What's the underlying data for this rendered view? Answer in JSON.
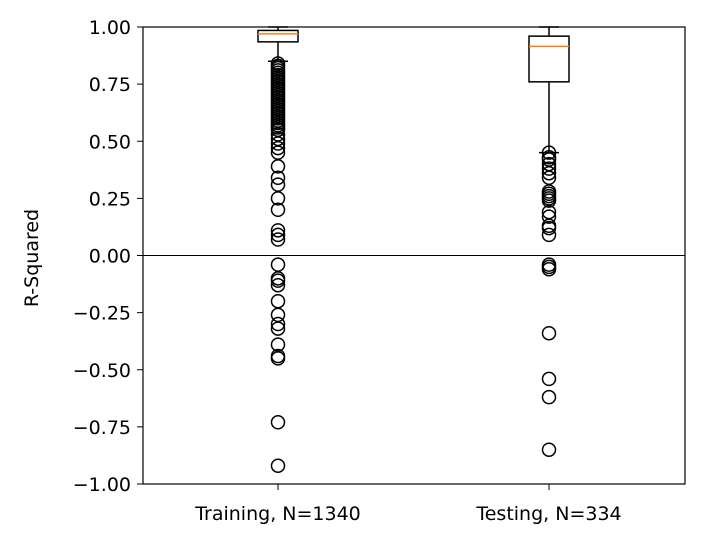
{
  "chart_data": {
    "type": "box",
    "ylabel": "R-Squared",
    "xlabel": "",
    "ylim": [
      -1.0,
      1.0
    ],
    "yticks": [
      1.0,
      0.75,
      0.5,
      0.25,
      0.0,
      -0.25,
      -0.5,
      -0.75,
      -1.0
    ],
    "ytick_labels": [
      "1.00",
      "0.75",
      "0.50",
      "0.25",
      "0.00",
      "−0.25",
      "−0.50",
      "−0.75",
      "−1.00"
    ],
    "reference_line_y": 0.0,
    "median_color": "#ff7f0e",
    "boxes": [
      {
        "label": "Training, N=1340",
        "q1": 0.935,
        "median": 0.97,
        "q3": 0.985,
        "whisker_low": 0.85,
        "whisker_high": 1.0,
        "outliers": [
          0.84,
          0.83,
          0.82,
          0.81,
          0.8,
          0.79,
          0.78,
          0.77,
          0.76,
          0.75,
          0.74,
          0.73,
          0.72,
          0.71,
          0.7,
          0.69,
          0.68,
          0.67,
          0.66,
          0.65,
          0.64,
          0.63,
          0.62,
          0.61,
          0.6,
          0.59,
          0.58,
          0.57,
          0.56,
          0.55,
          0.53,
          0.51,
          0.49,
          0.47,
          0.45,
          0.39,
          0.34,
          0.31,
          0.25,
          0.2,
          0.11,
          0.09,
          0.07,
          -0.04,
          -0.1,
          -0.11,
          -0.13,
          -0.2,
          -0.26,
          -0.3,
          -0.32,
          -0.39,
          -0.44,
          -0.45,
          -0.73,
          -0.92
        ]
      },
      {
        "label": "Testing, N=334",
        "q1": 0.76,
        "median": 0.915,
        "q3": 0.96,
        "whisker_low": 0.45,
        "whisker_high": 1.0,
        "outliers": [
          0.45,
          0.43,
          0.42,
          0.4,
          0.38,
          0.36,
          0.34,
          0.28,
          0.27,
          0.26,
          0.25,
          0.24,
          0.19,
          0.17,
          0.13,
          0.12,
          0.09,
          -0.04,
          -0.05,
          -0.06,
          -0.34,
          -0.54,
          -0.62,
          -0.85
        ]
      }
    ]
  }
}
